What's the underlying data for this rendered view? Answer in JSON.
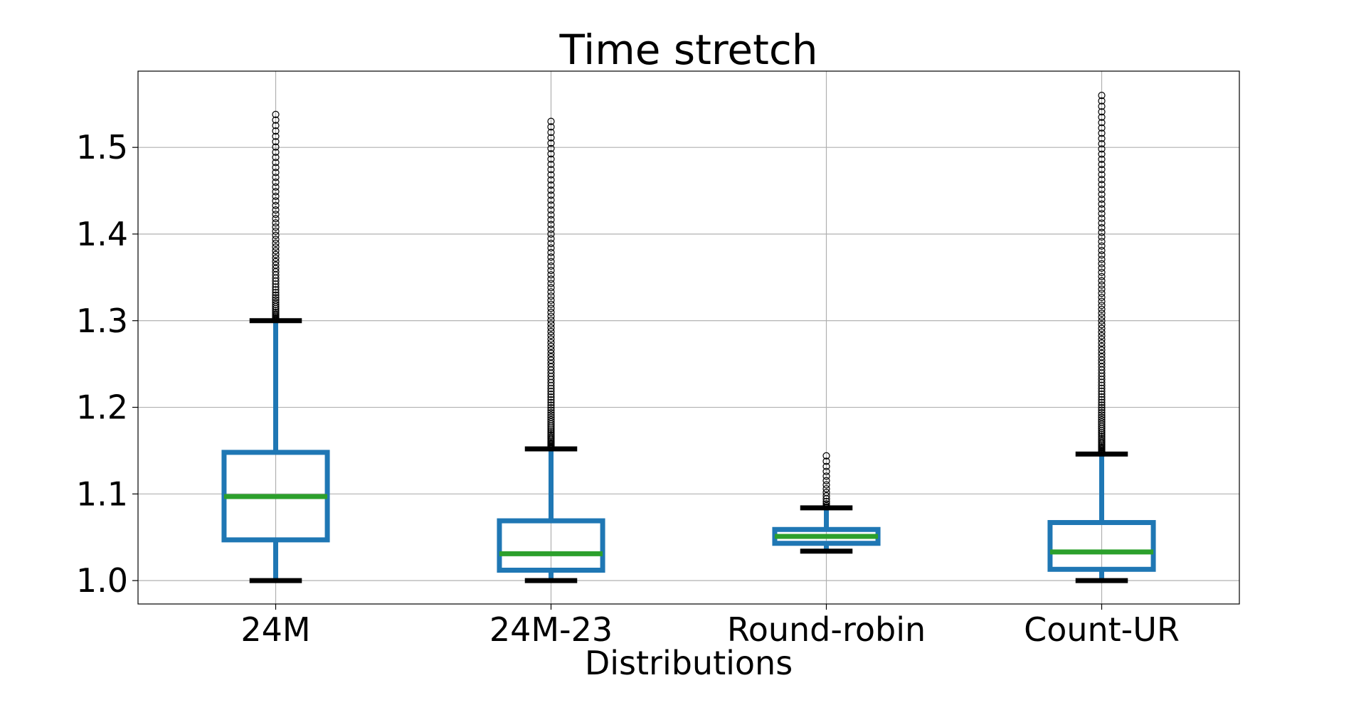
{
  "chart_data": {
    "type": "box",
    "title": "Time stretch",
    "xlabel": "Distributions",
    "ylabel": "",
    "ylim": [
      0.973,
      1.588
    ],
    "yticks": [
      "1.0",
      "1.1",
      "1.2",
      "1.3",
      "1.4",
      "1.5"
    ],
    "grid": true,
    "categories": [
      "24M",
      "24M-23",
      "Round-robin",
      "Count-UR"
    ],
    "boxes": [
      {
        "category": "24M",
        "whisker_low": 1.0,
        "q1": 1.047,
        "median": 1.097,
        "q3": 1.148,
        "whisker_high": 1.3,
        "outlier_range": [
          1.3,
          1.538
        ]
      },
      {
        "category": "24M-23",
        "whisker_low": 1.0,
        "q1": 1.012,
        "median": 1.031,
        "q3": 1.069,
        "whisker_high": 1.152,
        "outlier_range": [
          1.152,
          1.53
        ]
      },
      {
        "category": "Round-robin",
        "whisker_low": 1.034,
        "q1": 1.043,
        "median": 1.051,
        "q3": 1.059,
        "whisker_high": 1.084,
        "outlier_range": [
          1.084,
          1.144
        ]
      },
      {
        "category": "Count-UR",
        "whisker_low": 1.0,
        "q1": 1.013,
        "median": 1.033,
        "q3": 1.067,
        "whisker_high": 1.146,
        "outlier_range": [
          1.146,
          1.56
        ]
      }
    ],
    "colors": {
      "box": "#1f77b4",
      "median": "#2ca02c",
      "whisker_cap": "#000000",
      "grid": "#b0b0b0"
    }
  }
}
